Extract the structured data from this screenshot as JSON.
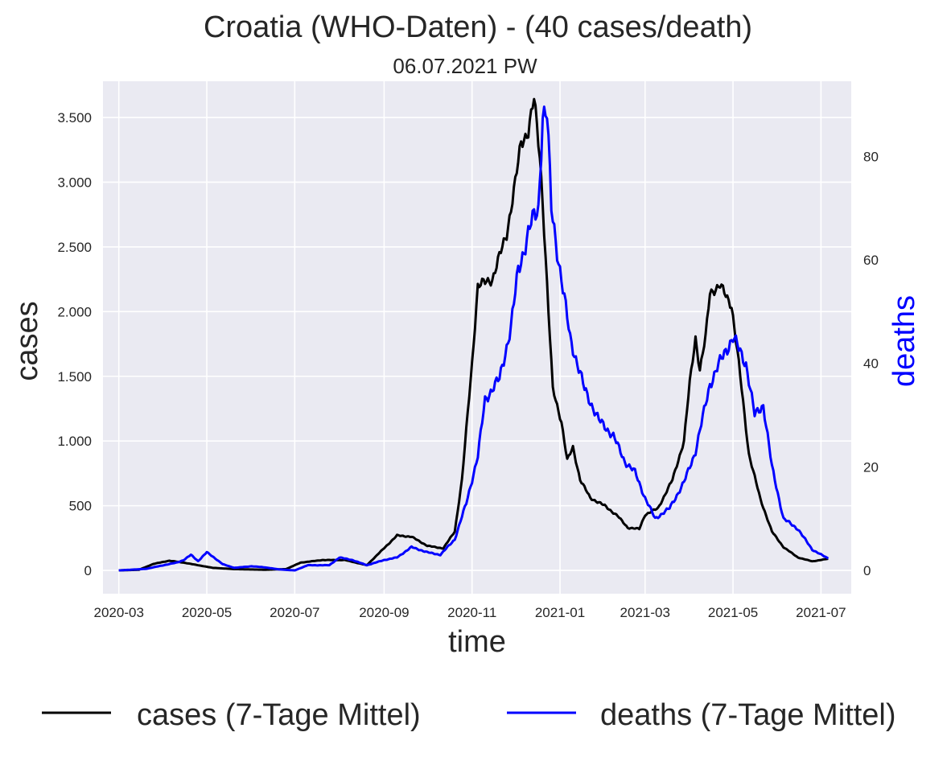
{
  "chart_data": {
    "type": "line",
    "title": "Croatia (WHO-Daten) - (40 cases/death)",
    "subtitle": "06.07.2021 PW",
    "xlabel": "time",
    "ylabel_left": "cases",
    "ylabel_right": "deaths",
    "x_ticks": [
      "2020-03",
      "2020-05",
      "2020-07",
      "2020-09",
      "2020-11",
      "2021-01",
      "2021-03",
      "2021-05",
      "2021-07"
    ],
    "y_left_ticks": [
      {
        "value": 0,
        "label": "0"
      },
      {
        "value": 500,
        "label": "500"
      },
      {
        "value": 1000,
        "label": "1.000"
      },
      {
        "value": 1500,
        "label": "1.500"
      },
      {
        "value": 2000,
        "label": "2.000"
      },
      {
        "value": 2500,
        "label": "2.500"
      },
      {
        "value": 3000,
        "label": "3.000"
      },
      {
        "value": 3500,
        "label": "3.500"
      }
    ],
    "y_right_ticks": [
      {
        "value": 0,
        "label": "0"
      },
      {
        "value": 20,
        "label": "20"
      },
      {
        "value": 40,
        "label": "40"
      },
      {
        "value": 60,
        "label": "60"
      },
      {
        "value": 80,
        "label": "80"
      }
    ],
    "x_range": [
      "2020-02-19",
      "2021-07-22"
    ],
    "y_left_range": [
      -180,
      3780
    ],
    "y_right_range": [
      -4.5,
      94.5
    ],
    "grid": true,
    "legend_position": "bottom",
    "series": [
      {
        "name": "cases (7-Tage Mittel)",
        "color": "#000000",
        "axis": "left",
        "points": [
          [
            "2020-03-01",
            0
          ],
          [
            "2020-03-15",
            5
          ],
          [
            "2020-03-25",
            50
          ],
          [
            "2020-04-05",
            75
          ],
          [
            "2020-04-15",
            60
          ],
          [
            "2020-04-25",
            40
          ],
          [
            "2020-05-05",
            20
          ],
          [
            "2020-05-20",
            10
          ],
          [
            "2020-06-10",
            5
          ],
          [
            "2020-06-25",
            10
          ],
          [
            "2020-07-05",
            60
          ],
          [
            "2020-07-20",
            80
          ],
          [
            "2020-08-05",
            80
          ],
          [
            "2020-08-20",
            40
          ],
          [
            "2020-08-30",
            150
          ],
          [
            "2020-09-10",
            270
          ],
          [
            "2020-09-20",
            260
          ],
          [
            "2020-10-01",
            190
          ],
          [
            "2020-10-12",
            170
          ],
          [
            "2020-10-20",
            300
          ],
          [
            "2020-10-25",
            700
          ],
          [
            "2020-11-01",
            1600
          ],
          [
            "2020-11-05",
            2200
          ],
          [
            "2020-11-15",
            2250
          ],
          [
            "2020-11-25",
            2600
          ],
          [
            "2020-12-01",
            3000
          ],
          [
            "2020-12-05",
            3300
          ],
          [
            "2020-12-10",
            3400
          ],
          [
            "2020-12-14",
            3640
          ],
          [
            "2020-12-18",
            3200
          ],
          [
            "2020-12-20",
            2850
          ],
          [
            "2020-12-24",
            2000
          ],
          [
            "2020-12-27",
            1400
          ],
          [
            "2021-01-02",
            1150
          ],
          [
            "2021-01-06",
            850
          ],
          [
            "2021-01-10",
            950
          ],
          [
            "2021-01-15",
            700
          ],
          [
            "2021-01-22",
            560
          ],
          [
            "2021-02-01",
            500
          ],
          [
            "2021-02-10",
            420
          ],
          [
            "2021-02-17",
            330
          ],
          [
            "2021-02-25",
            320
          ],
          [
            "2021-03-01",
            430
          ],
          [
            "2021-03-10",
            480
          ],
          [
            "2021-03-20",
            700
          ],
          [
            "2021-03-28",
            1000
          ],
          [
            "2021-04-01",
            1450
          ],
          [
            "2021-04-05",
            1800
          ],
          [
            "2021-04-08",
            1550
          ],
          [
            "2021-04-12",
            1800
          ],
          [
            "2021-04-15",
            2150
          ],
          [
            "2021-04-22",
            2200
          ],
          [
            "2021-04-30",
            2050
          ],
          [
            "2021-05-05",
            1600
          ],
          [
            "2021-05-12",
            900
          ],
          [
            "2021-05-20",
            550
          ],
          [
            "2021-05-28",
            300
          ],
          [
            "2021-06-05",
            180
          ],
          [
            "2021-06-15",
            100
          ],
          [
            "2021-06-25",
            70
          ],
          [
            "2021-07-06",
            90
          ]
        ]
      },
      {
        "name": "deaths (7-Tage Mittel)",
        "color": "#0000ff",
        "axis": "right",
        "points": [
          [
            "2020-03-01",
            0
          ],
          [
            "2020-03-20",
            0.3
          ],
          [
            "2020-04-01",
            1
          ],
          [
            "2020-04-10",
            1.5
          ],
          [
            "2020-04-15",
            2
          ],
          [
            "2020-04-20",
            3
          ],
          [
            "2020-04-25",
            1.8
          ],
          [
            "2020-05-01",
            3.5
          ],
          [
            "2020-05-06",
            2.5
          ],
          [
            "2020-05-12",
            1.2
          ],
          [
            "2020-05-20",
            0.5
          ],
          [
            "2020-06-01",
            0.8
          ],
          [
            "2020-06-10",
            0.6
          ],
          [
            "2020-06-20",
            0.2
          ],
          [
            "2020-07-01",
            0
          ],
          [
            "2020-07-10",
            1
          ],
          [
            "2020-07-25",
            1
          ],
          [
            "2020-08-01",
            2.5
          ],
          [
            "2020-08-10",
            2
          ],
          [
            "2020-08-20",
            1
          ],
          [
            "2020-09-01",
            2
          ],
          [
            "2020-09-10",
            2.5
          ],
          [
            "2020-09-20",
            4.5
          ],
          [
            "2020-10-01",
            3.5
          ],
          [
            "2020-10-10",
            3
          ],
          [
            "2020-10-20",
            6
          ],
          [
            "2020-10-28",
            13
          ],
          [
            "2020-11-05",
            22
          ],
          [
            "2020-11-10",
            33
          ],
          [
            "2020-11-20",
            37
          ],
          [
            "2020-11-28",
            47
          ],
          [
            "2020-12-03",
            58
          ],
          [
            "2020-12-08",
            63
          ],
          [
            "2020-12-12",
            67
          ],
          [
            "2020-12-17",
            70
          ],
          [
            "2020-12-20",
            88
          ],
          [
            "2020-12-23",
            88
          ],
          [
            "2020-12-26",
            70
          ],
          [
            "2021-01-01",
            58
          ],
          [
            "2021-01-08",
            45
          ],
          [
            "2021-01-18",
            35
          ],
          [
            "2021-01-28",
            29
          ],
          [
            "2021-02-07",
            26
          ],
          [
            "2021-02-15",
            21
          ],
          [
            "2021-02-22",
            19
          ],
          [
            "2021-03-01",
            14
          ],
          [
            "2021-03-08",
            10
          ],
          [
            "2021-03-18",
            12
          ],
          [
            "2021-03-28",
            17
          ],
          [
            "2021-04-05",
            23
          ],
          [
            "2021-04-15",
            36
          ],
          [
            "2021-04-25",
            42
          ],
          [
            "2021-05-01",
            45
          ],
          [
            "2021-05-10",
            40
          ],
          [
            "2021-05-16",
            30
          ],
          [
            "2021-05-22",
            32
          ],
          [
            "2021-05-28",
            20
          ],
          [
            "2021-06-05",
            10
          ],
          [
            "2021-06-15",
            8
          ],
          [
            "2021-06-25",
            4
          ],
          [
            "2021-07-06",
            2.3
          ]
        ]
      }
    ]
  }
}
